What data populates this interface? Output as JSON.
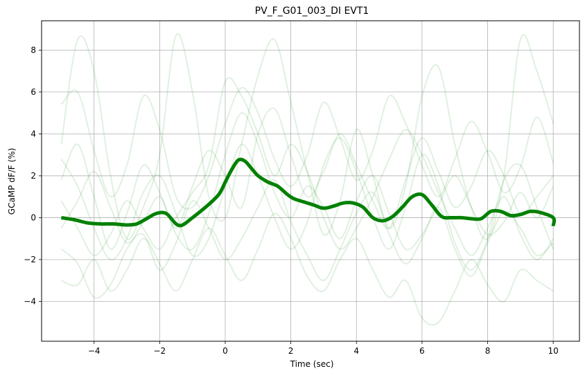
{
  "chart_data": {
    "type": "line",
    "title": "PV_F_G01_003_DI EVT1",
    "xlabel": "Time (sec)",
    "ylabel": "GCaMP dF/F (%)",
    "xlim": [
      -5.6,
      10.8
    ],
    "ylim": [
      -5.9,
      9.4
    ],
    "xticks": [
      -4,
      -2,
      0,
      2,
      4,
      6,
      8,
      10
    ],
    "xtick_labels": [
      "−4",
      "−2",
      "0",
      "2",
      "4",
      "6",
      "8",
      "10"
    ],
    "yticks": [
      -4,
      -2,
      0,
      2,
      4,
      6,
      8
    ],
    "ytick_labels": [
      "−4",
      "−2",
      "0",
      "2",
      "4",
      "6",
      "8"
    ],
    "grid": true,
    "colors": {
      "mean": "#008000",
      "trials": "#008000",
      "grid": "#b0b0b0"
    },
    "trials_opacity": 0.12,
    "mean": {
      "x": [
        -5,
        -4.6,
        -4.2,
        -3.8,
        -3.4,
        -3.0,
        -2.7,
        -2.4,
        -2.1,
        -1.8,
        -1.5,
        -1.3,
        -1.0,
        -0.6,
        -0.2,
        0.0,
        0.2,
        0.4,
        0.6,
        0.8,
        1.0,
        1.3,
        1.6,
        1.9,
        2.1,
        2.4,
        2.7,
        3.0,
        3.3,
        3.6,
        3.9,
        4.2,
        4.5,
        4.8,
        5.1,
        5.4,
        5.7,
        6.0,
        6.3,
        6.6,
        6.9,
        7.2,
        7.5,
        7.8,
        8.1,
        8.4,
        8.7,
        9.0,
        9.3,
        9.6,
        10.0,
        10.0
      ],
      "y": [
        0.0,
        -0.1,
        -0.25,
        -0.3,
        -0.3,
        -0.35,
        -0.3,
        -0.05,
        0.2,
        0.2,
        -0.3,
        -0.35,
        0.0,
        0.5,
        1.1,
        1.7,
        2.3,
        2.75,
        2.7,
        2.35,
        2.0,
        1.7,
        1.5,
        1.1,
        0.9,
        0.75,
        0.6,
        0.45,
        0.55,
        0.7,
        0.7,
        0.5,
        0.0,
        -0.15,
        0.05,
        0.5,
        1.0,
        1.1,
        0.6,
        0.05,
        0.0,
        0.0,
        -0.05,
        -0.05,
        0.3,
        0.3,
        0.1,
        0.15,
        0.3,
        0.25,
        0.0,
        -0.4
      ]
    },
    "trials": [
      {
        "x": [
          -5,
          -4.5,
          -4,
          -3.5,
          -3,
          -2.5,
          -2,
          -1.5,
          -1,
          -0.5,
          0,
          0.5,
          1,
          1.5,
          2,
          2.5,
          3,
          3.5,
          4,
          4.5,
          5,
          5.5,
          6,
          6.5,
          7,
          7.5,
          8,
          8.5,
          9,
          9.5,
          10
        ],
        "y": [
          5.4,
          6.0,
          3.2,
          1.0,
          2.5,
          5.8,
          4.2,
          1.0,
          0.5,
          2.0,
          4.5,
          6.2,
          5.0,
          2.8,
          1.5,
          3.0,
          5.5,
          3.8,
          1.8,
          3.2,
          5.8,
          4.5,
          2.5,
          1.0,
          2.8,
          4.6,
          3.1,
          1.2,
          2.4,
          4.8,
          2.6
        ]
      },
      {
        "x": [
          -5,
          -4.5,
          -4,
          -3.5,
          -3,
          -2.5,
          -2,
          -1.5,
          -1,
          -0.5,
          0,
          0.5,
          1,
          1.5,
          2,
          2.5,
          3,
          3.5,
          4,
          4.5,
          5,
          5.5,
          6,
          6.5,
          7,
          7.5,
          8,
          8.5,
          9,
          9.5,
          10
        ],
        "y": [
          3.5,
          8.5,
          7.0,
          2.0,
          -1.0,
          0.5,
          3.0,
          8.7,
          6.0,
          1.0,
          0.0,
          3.5,
          6.8,
          8.5,
          5.5,
          2.2,
          -0.8,
          0.8,
          4.2,
          2.0,
          -0.5,
          1.5,
          5.8,
          7.2,
          3.5,
          0.5,
          -1.0,
          2.0,
          8.5,
          7.0,
          4.5
        ]
      },
      {
        "x": [
          -5,
          -4.5,
          -4,
          -3.5,
          -3,
          -2.5,
          -2,
          -1.5,
          -1,
          -0.5,
          0,
          0.5,
          1,
          1.5,
          2,
          2.5,
          3,
          3.5,
          4,
          4.5,
          5,
          5.5,
          6,
          6.5,
          7,
          7.5,
          8,
          8.5,
          9,
          9.5,
          10
        ],
        "y": [
          2.8,
          1.5,
          -0.5,
          -2.0,
          -1.0,
          1.2,
          2.0,
          0.2,
          -1.8,
          -1.0,
          1.5,
          3.5,
          2.0,
          0.0,
          -1.5,
          -0.2,
          2.5,
          3.8,
          2.2,
          0.0,
          -1.5,
          0.5,
          3.0,
          1.5,
          -1.2,
          -2.5,
          -1.0,
          1.8,
          2.5,
          0.5,
          -1.5
        ]
      },
      {
        "x": [
          -5,
          -4.5,
          -4,
          -3.5,
          -3,
          -2.5,
          -2,
          -1.5,
          -1,
          -0.5,
          0,
          0.5,
          1,
          1.5,
          2,
          2.5,
          3,
          3.5,
          4,
          4.5,
          5,
          5.5,
          6,
          6.5,
          7,
          7.5,
          8,
          8.5,
          9,
          9.5,
          10
        ],
        "y": [
          -3.0,
          -3.2,
          -2.0,
          -3.5,
          -2.5,
          -1.0,
          -2.2,
          -3.5,
          -2.0,
          -0.5,
          -1.8,
          -3.0,
          -1.5,
          0.2,
          -1.0,
          -2.8,
          -3.5,
          -2.0,
          -1.0,
          -2.5,
          -3.8,
          -3.0,
          -4.8,
          -5.0,
          -3.5,
          -2.0,
          -3.2,
          -4.0,
          -2.5,
          -3.0,
          -3.5
        ]
      },
      {
        "x": [
          -5,
          -4.5,
          -4,
          -3.5,
          -3,
          -2.5,
          -2,
          -1.5,
          -1,
          -0.5,
          0,
          0.5,
          1,
          1.5,
          2,
          2.5,
          3,
          3.5,
          4,
          4.5,
          5,
          5.5,
          6,
          6.5,
          7,
          7.5,
          8,
          8.5,
          9,
          9.5,
          10
        ],
        "y": [
          -1.5,
          -2.2,
          -3.8,
          -3.2,
          -1.5,
          -0.8,
          -2.5,
          -1.2,
          0.8,
          -0.5,
          -2.0,
          -1.0,
          0.5,
          1.8,
          -0.2,
          -1.8,
          -3.0,
          -1.5,
          0.2,
          1.2,
          -0.8,
          -2.2,
          -1.0,
          0.5,
          -1.5,
          -2.8,
          -1.2,
          0.3,
          -0.5,
          -1.8,
          -1.2
        ]
      },
      {
        "x": [
          -5,
          -4.5,
          -4,
          -3.5,
          -3,
          -2.5,
          -2,
          -1.5,
          -1,
          -0.5,
          0,
          0.5,
          1,
          1.5,
          2,
          2.5,
          3,
          3.5,
          4,
          4.5,
          5,
          5.5,
          6,
          6.5,
          7,
          7.5,
          8,
          8.5,
          9,
          9.5,
          10
        ],
        "y": [
          1.8,
          3.5,
          1.0,
          -1.5,
          0.2,
          2.5,
          1.2,
          -0.5,
          1.5,
          3.2,
          2.0,
          0.5,
          4.0,
          5.2,
          3.0,
          1.0,
          2.2,
          4.0,
          2.5,
          0.8,
          -0.5,
          1.8,
          3.8,
          2.2,
          0.5,
          1.5,
          3.2,
          2.0,
          0.2,
          1.0,
          2.0
        ]
      },
      {
        "x": [
          -5,
          -4.5,
          -4,
          -3.5,
          -3,
          -2.5,
          -2,
          -1.5,
          -1,
          -0.5,
          0,
          0.5,
          1,
          1.5,
          2,
          2.5,
          3,
          3.5,
          4,
          4.5,
          5,
          5.5,
          6,
          6.5,
          7,
          7.5,
          8,
          8.5,
          9,
          9.5,
          10
        ],
        "y": [
          -0.5,
          0.8,
          2.2,
          0.5,
          -1.2,
          -0.2,
          1.0,
          -0.8,
          -1.5,
          0.2,
          3.0,
          5.0,
          3.5,
          1.2,
          0.0,
          1.5,
          0.5,
          -1.0,
          0.8,
          2.0,
          0.2,
          -1.5,
          -0.8,
          0.6,
          2.0,
          0.5,
          -0.8,
          -0.2,
          1.2,
          0.0,
          1.5
        ]
      },
      {
        "x": [
          -5,
          -4.5,
          -4,
          -3.5,
          -3,
          -2.5,
          -2,
          -1.5,
          -1,
          -0.5,
          0,
          0.5,
          1,
          1.5,
          2,
          2.5,
          3,
          3.5,
          4,
          4.5,
          5,
          5.5,
          6,
          6.5,
          7,
          7.5,
          8,
          8.5,
          9,
          9.5,
          10
        ],
        "y": [
          0.8,
          -0.5,
          -1.8,
          -0.8,
          0.8,
          -0.5,
          -1.5,
          0.0,
          1.2,
          2.5,
          6.5,
          5.8,
          4.0,
          2.0,
          3.5,
          2.2,
          0.0,
          -1.5,
          -0.5,
          1.0,
          2.8,
          4.2,
          3.0,
          1.2,
          -0.5,
          -1.8,
          -0.5,
          1.0,
          -0.8,
          -2.0,
          -1.0
        ]
      }
    ]
  }
}
